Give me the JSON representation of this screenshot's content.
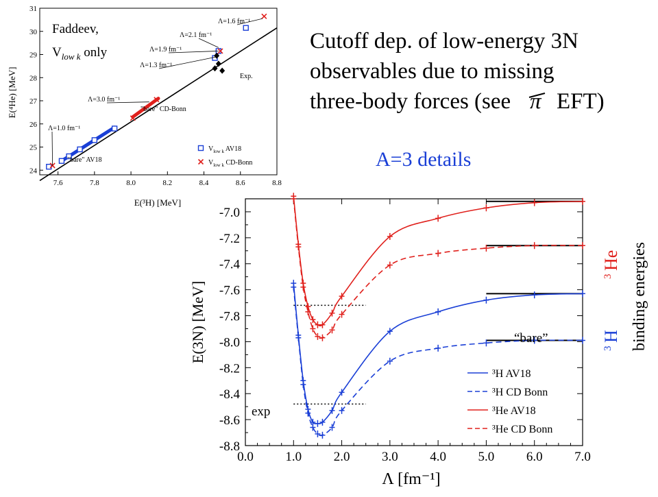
{
  "slide": {
    "title_lines": [
      "Cutoff dep. of low-energy 3N",
      "observables due to missing",
      "three-body forces (see",
      "EFT)"
    ],
    "title_symbol": "π",
    "subtitle": "A=3 details",
    "side_label_he": "He",
    "side_label_h": "H",
    "mass_number": "3",
    "side_label_binding": "binding energies",
    "colors": {
      "blue": "#1a3fd6",
      "red": "#e0201c",
      "dark_blue": "#1515a0"
    }
  },
  "chart_data": [
    {
      "type": "scatter",
      "xlabel": "E(³H) [MeV]",
      "ylabel": "E(⁴He) [MeV]",
      "xlim": [
        7.5,
        8.8
      ],
      "ylim": [
        23.8,
        31
      ],
      "xticks": [
        "7.6",
        "7.8",
        "8.0",
        "8.2",
        "8.4",
        "8.6",
        "8.8"
      ],
      "yticks": [
        "24",
        "25",
        "26",
        "27",
        "28",
        "29",
        "30",
        "31"
      ],
      "inset_title": [
        "Faddeev,",
        "V",
        "low k",
        " only"
      ],
      "line": {
        "x": [
          7.5,
          8.8
        ],
        "y": [
          23.55,
          30.15
        ]
      },
      "series": [
        {
          "name": "V_low k AV18",
          "marker": "square",
          "color": "#1a3fd6",
          "points": [
            [
              7.55,
              24.15
            ],
            [
              7.62,
              24.4
            ],
            [
              7.66,
              24.6
            ],
            [
              7.72,
              24.9
            ],
            [
              7.8,
              25.3
            ],
            [
              7.91,
              25.8
            ],
            [
              8.46,
              28.85
            ],
            [
              8.48,
              29.15
            ],
            [
              8.63,
              30.15
            ]
          ]
        },
        {
          "name": "V_low k CD-Bonn",
          "marker": "x",
          "color": "#e0201c",
          "points": [
            [
              7.57,
              24.2
            ],
            [
              8.01,
              26.25
            ],
            [
              8.14,
              27.05
            ],
            [
              8.49,
              29.15
            ],
            [
              8.73,
              30.65
            ]
          ]
        },
        {
          "name": "Exp.",
          "marker": "diamond",
          "color": "#000000",
          "points": [
            [
              8.46,
              28.4
            ],
            [
              8.48,
              28.6
            ],
            [
              8.5,
              28.3
            ],
            [
              8.47,
              28.95
            ]
          ]
        }
      ],
      "bands": [
        {
          "color": "#1a3fd6",
          "from": [
            7.62,
            24.4
          ],
          "to": [
            7.91,
            25.85
          ]
        },
        {
          "color": "#e0201c",
          "from": [
            8.01,
            26.3
          ],
          "to": [
            8.15,
            27.1
          ]
        }
      ],
      "annotations": [
        {
          "text": "Λ=1.6 fm⁻¹",
          "target": [
            8.72,
            30.55
          ]
        },
        {
          "text": "Λ=2.1 fm⁻¹",
          "target": [
            8.48,
            29.3
          ]
        },
        {
          "text": "Λ=1.9 fm⁻¹",
          "target": [
            8.48,
            29.15
          ]
        },
        {
          "text": "Λ=1.3 fm⁻¹",
          "target": [
            8.47,
            28.9
          ]
        },
        {
          "text": "Λ=3.0 fm⁻¹",
          "target": [
            8.1,
            26.95
          ]
        },
        {
          "text": "Λ=1.0 fm⁻¹",
          "target": [
            7.57,
            24.2
          ]
        },
        {
          "text": "\"bare\" CD-Bonn",
          "target": [
            8.01,
            26.25
          ]
        },
        {
          "text": "\"bare\" AV18",
          "target": [
            7.65,
            24.45
          ]
        },
        {
          "text": "Exp.",
          "target": [
            8.5,
            28.3
          ]
        }
      ],
      "legend": [
        {
          "label": "V",
          "sub": "low k",
          "rest": " AV18",
          "marker": "square",
          "color": "#1a3fd6"
        },
        {
          "label": "V",
          "sub": "low k",
          "rest": " CD-Bonn",
          "marker": "x",
          "color": "#e0201c"
        }
      ]
    },
    {
      "type": "line",
      "xlabel": "Λ [fm⁻¹]",
      "ylabel": "E(3N) [MeV]",
      "xlim": [
        0,
        7
      ],
      "ylim": [
        -8.8,
        -6.9
      ],
      "xticks": [
        0,
        1,
        2,
        3,
        4,
        5,
        6,
        7
      ],
      "xtick_labels": [
        "0.0",
        "1.0",
        "2.0",
        "3.0",
        "4.0",
        "5.0",
        "6.0",
        "7.0"
      ],
      "yticks": [
        -8.8,
        -8.6,
        -8.4,
        -8.2,
        -8.0,
        -7.8,
        -7.6,
        -7.4,
        -7.2,
        -7.0
      ],
      "ytick_labels": [
        "-8.8",
        "-8.6",
        "-8.4",
        "-8.2",
        "-8.0",
        "-7.8",
        "-7.6",
        "-7.4",
        "-7.2",
        "-7.0"
      ],
      "series": [
        {
          "name": "³H AV18",
          "color": "#1a3fd6",
          "dash": false,
          "x": [
            1.0,
            1.1,
            1.2,
            1.3,
            1.4,
            1.5,
            1.6,
            1.8,
            2.0,
            3.0,
            4.0,
            5.0,
            6.0,
            7.0
          ],
          "y": [
            -7.55,
            -7.95,
            -8.3,
            -8.52,
            -8.62,
            -8.63,
            -8.62,
            -8.53,
            -8.39,
            -7.92,
            -7.77,
            -7.68,
            -7.64,
            -7.63
          ]
        },
        {
          "name": "³H CD Bonn",
          "color": "#1a3fd6",
          "dash": true,
          "x": [
            1.0,
            1.1,
            1.2,
            1.3,
            1.4,
            1.5,
            1.6,
            1.8,
            2.0,
            3.0,
            4.0,
            5.0,
            6.0,
            7.0
          ],
          "y": [
            -7.58,
            -7.97,
            -8.33,
            -8.55,
            -8.66,
            -8.71,
            -8.72,
            -8.66,
            -8.53,
            -8.15,
            -8.05,
            -8.01,
            -7.99,
            -7.99
          ]
        },
        {
          "name": "³He AV18",
          "color": "#e0201c",
          "dash": false,
          "x": [
            1.0,
            1.1,
            1.2,
            1.3,
            1.4,
            1.5,
            1.6,
            1.8,
            2.0,
            3.0,
            4.0,
            5.0,
            6.0,
            7.0
          ],
          "y": [
            -6.88,
            -7.25,
            -7.55,
            -7.73,
            -7.83,
            -7.87,
            -7.87,
            -7.78,
            -7.65,
            -7.19,
            -7.05,
            -6.97,
            -6.93,
            -6.92
          ]
        },
        {
          "name": "³He CD Bonn",
          "color": "#e0201c",
          "dash": true,
          "x": [
            1.0,
            1.1,
            1.2,
            1.3,
            1.4,
            1.5,
            1.6,
            1.8,
            2.0,
            3.0,
            4.0,
            5.0,
            6.0,
            7.0
          ],
          "y": [
            -6.9,
            -7.27,
            -7.58,
            -7.77,
            -7.9,
            -7.96,
            -7.97,
            -7.91,
            -7.79,
            -7.41,
            -7.32,
            -7.28,
            -7.26,
            -7.26
          ]
        }
      ],
      "reference_lines": [
        {
          "y": -6.92,
          "x": [
            5.0,
            7.0
          ]
        },
        {
          "y": -7.26,
          "x": [
            5.0,
            7.0
          ]
        },
        {
          "y": -7.63,
          "x": [
            5.0,
            7.0
          ]
        },
        {
          "y": -7.99,
          "x": [
            5.0,
            7.0
          ]
        }
      ],
      "exp_lines": [
        {
          "y": -7.72,
          "x": [
            1.0,
            2.5
          ]
        },
        {
          "y": -8.48,
          "x": [
            1.0,
            2.5
          ]
        }
      ],
      "exp_label": "exp",
      "bare_label": "“bare”",
      "legend_position": "bottom-right"
    }
  ]
}
